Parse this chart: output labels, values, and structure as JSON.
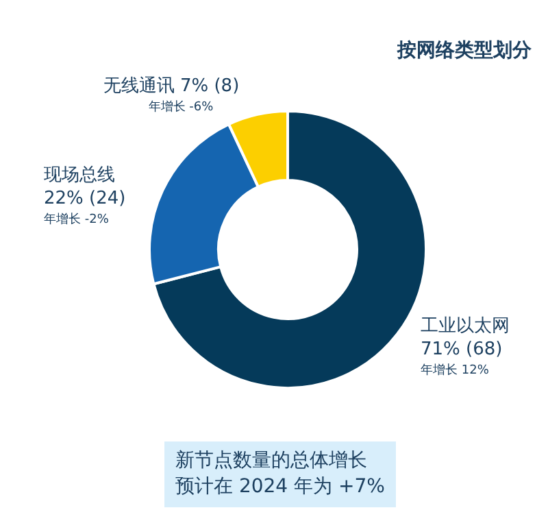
{
  "chart_data": {
    "type": "donut",
    "title": "按网络类型划分",
    "categories": [
      "工业以太网",
      "现场总线",
      "无线通讯"
    ],
    "values": [
      71,
      22,
      7
    ],
    "value_labels": [
      "71% (68)",
      "22% (24)",
      "7% (8)"
    ],
    "colors": [
      "#053a5a",
      "#1565b0",
      "#fccf00"
    ],
    "annotations": [
      "年增长 12%",
      "年增长 -2%",
      "年增长 -6%",
      "新节点数量的总体增长",
      "预计在 2024 年为 +7%"
    ],
    "legend": false
  }
}
